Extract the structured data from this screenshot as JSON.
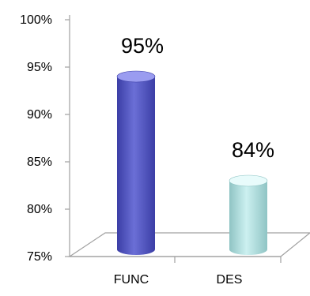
{
  "chart_data": {
    "type": "bar",
    "categories": [
      "FUNC",
      "DES"
    ],
    "values": [
      95,
      84
    ],
    "data_labels": [
      "95%",
      "84%"
    ],
    "ylim": [
      75,
      100
    ],
    "y_ticks": [
      {
        "value": 75,
        "label": "75%"
      },
      {
        "value": 80,
        "label": "80%"
      },
      {
        "value": 85,
        "label": "85%"
      },
      {
        "value": 90,
        "label": "90%"
      },
      {
        "value": 95,
        "label": "95%"
      },
      {
        "value": 100,
        "label": "100%"
      }
    ],
    "title": "",
    "xlabel": "",
    "ylabel": "",
    "grid": false,
    "legend": "none",
    "style": "3d-cylinder",
    "colors": {
      "FUNC": {
        "body": "#6b6fd6",
        "dark": "#3b3ea6",
        "top": "#9a9cf0"
      },
      "DES": {
        "body": "#ccf0f0",
        "dark": "#8fc4c4",
        "top": "#e8fbfb"
      }
    }
  }
}
